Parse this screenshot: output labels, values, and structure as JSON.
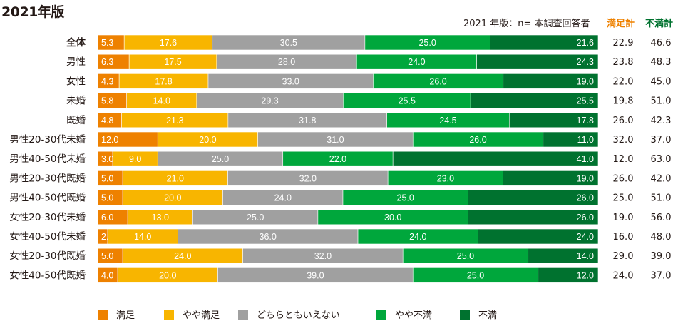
{
  "header": {
    "title": "2021年版",
    "note": "2021 年版：n= 本調査回答者",
    "col_satisfied_total": "満足計",
    "col_dissatisfied_total": "不満計"
  },
  "colors": {
    "満足": "#ee8100",
    "やや満足": "#f8b500",
    "どちらともいえない": "#a0a0a0",
    "やや不満": "#00a73c",
    "不満": "#00722f",
    "satisfied_total_header": "#ee8100",
    "dissatisfied_total_header": "#00722f"
  },
  "chart_data": {
    "type": "bar",
    "orientation": "horizontal",
    "stacked": true,
    "normalized": true,
    "title": "2021年版",
    "subtitle": "2021 年版：n= 本調査回答者",
    "xlabel": "",
    "ylabel": "",
    "xlim": [
      0,
      100
    ],
    "grid": false,
    "legend_position": "bottom",
    "categories": [
      "全体",
      "男性",
      "女性",
      "未婚",
      "既婚",
      "男性20-30代未婚",
      "男性40-50代未婚",
      "男性20-30代既婚",
      "男性40-50代既婚",
      "女性20-30代未婚",
      "女性40-50代未婚",
      "女性20-30代既婚",
      "女性40-50代既婚"
    ],
    "bold_categories": [
      "全体"
    ],
    "series": [
      {
        "name": "満足",
        "values": [
          5.3,
          6.3,
          4.3,
          5.8,
          4.8,
          12.0,
          3.0,
          5.0,
          5.0,
          6.0,
          2.0,
          5.0,
          4.0
        ]
      },
      {
        "name": "やや満足",
        "values": [
          17.6,
          17.5,
          17.8,
          14.0,
          21.3,
          20.0,
          9.0,
          21.0,
          20.0,
          13.0,
          14.0,
          24.0,
          20.0
        ]
      },
      {
        "name": "どちらともいえない",
        "values": [
          30.5,
          28.0,
          33.0,
          29.3,
          31.8,
          31.0,
          25.0,
          32.0,
          24.0,
          25.0,
          36.0,
          32.0,
          39.0
        ]
      },
      {
        "name": "やや不満",
        "values": [
          25.0,
          24.0,
          26.0,
          25.5,
          24.5,
          26.0,
          22.0,
          23.0,
          25.0,
          30.0,
          24.0,
          25.0,
          25.0
        ]
      },
      {
        "name": "不満",
        "values": [
          21.6,
          24.3,
          19.0,
          25.5,
          17.8,
          11.0,
          41.0,
          19.0,
          26.0,
          26.0,
          24.0,
          14.0,
          12.0
        ]
      }
    ],
    "totals": {
      "満足計": [
        22.9,
        23.8,
        22.0,
        19.8,
        26.0,
        32.0,
        12.0,
        26.0,
        25.0,
        19.0,
        16.0,
        29.0,
        24.0
      ],
      "不満計": [
        46.6,
        48.3,
        45.0,
        51.0,
        42.3,
        37.0,
        63.0,
        42.0,
        51.0,
        56.0,
        48.0,
        39.0,
        37.0
      ]
    }
  },
  "legend": {
    "items": [
      {
        "label": "満足",
        "color": "#ee8100"
      },
      {
        "label": "やや満足",
        "color": "#f8b500"
      },
      {
        "label": "どちらともいえない",
        "color": "#a0a0a0"
      },
      {
        "label": "やや不満",
        "color": "#00a73c"
      },
      {
        "label": "不満",
        "color": "#00722f"
      }
    ]
  }
}
